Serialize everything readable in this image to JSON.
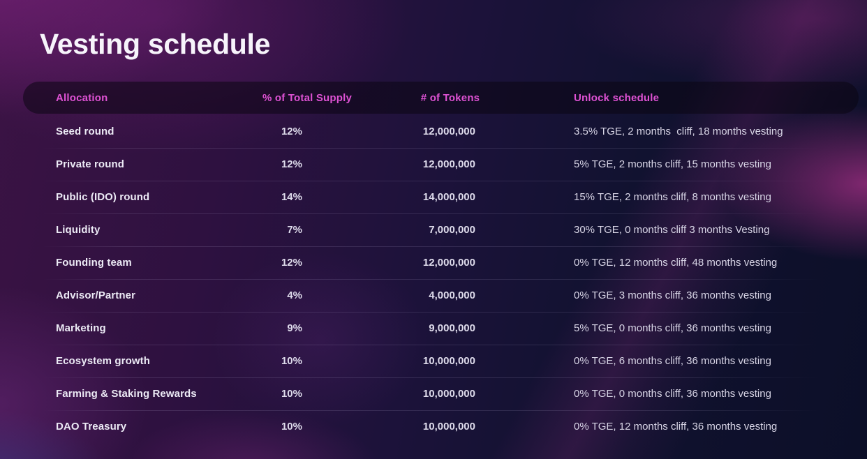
{
  "page": {
    "title": "Vesting schedule"
  },
  "table": {
    "headers": [
      "Allocation",
      "% of Total Supply",
      "# of Tokens",
      "Unlock schedule"
    ],
    "rows": [
      {
        "allocation": "Seed round",
        "pct_of_supply": "12%",
        "tokens": "12,000,000",
        "unlock": "3.5% TGE, 2 months  cliff, 18 months vesting"
      },
      {
        "allocation": "Private round",
        "pct_of_supply": "12%",
        "tokens": "12,000,000",
        "unlock": "5% TGE, 2 months cliff, 15 months vesting"
      },
      {
        "allocation": "Public (IDO) round",
        "pct_of_supply": "14%",
        "tokens": "14,000,000",
        "unlock": "15% TGE, 2 months cliff, 8 months vesting"
      },
      {
        "allocation": "Liquidity",
        "pct_of_supply": "7%",
        "tokens": "7,000,000",
        "unlock": "30% TGE, 0 months cliff 3 months Vesting"
      },
      {
        "allocation": "Founding team",
        "pct_of_supply": "12%",
        "tokens": "12,000,000",
        "unlock": "0% TGE, 12 months cliff, 48 months vesting"
      },
      {
        "allocation": "Advisor/Partner",
        "pct_of_supply": "4%",
        "tokens": "4,000,000",
        "unlock": "0% TGE, 3 months cliff, 36 months vesting"
      },
      {
        "allocation": "Marketing",
        "pct_of_supply": "9%",
        "tokens": "9,000,000",
        "unlock": "5% TGE, 0 months cliff, 36 months vesting"
      },
      {
        "allocation": "Ecosystem growth",
        "pct_of_supply": "10%",
        "tokens": "10,000,000",
        "unlock": "0% TGE, 6 months cliff, 36 months vesting"
      },
      {
        "allocation": "Farming & Staking Rewards",
        "pct_of_supply": "10%",
        "tokens": "10,000,000",
        "unlock": "0% TGE, 0 months cliff, 36 months vesting"
      },
      {
        "allocation": "DAO Treasury",
        "pct_of_supply": "10%",
        "tokens": "10,000,000",
        "unlock": "0% TGE, 12 months cliff, 36 months vesting"
      }
    ]
  },
  "colors": {
    "accent_pink": "#df52d4",
    "title_text": "#f7f4fb",
    "row_text": "#eceaf5",
    "muted_text": "#d8d5e6",
    "background_purple": "#3b1344",
    "background_navy": "#0c0f28"
  }
}
